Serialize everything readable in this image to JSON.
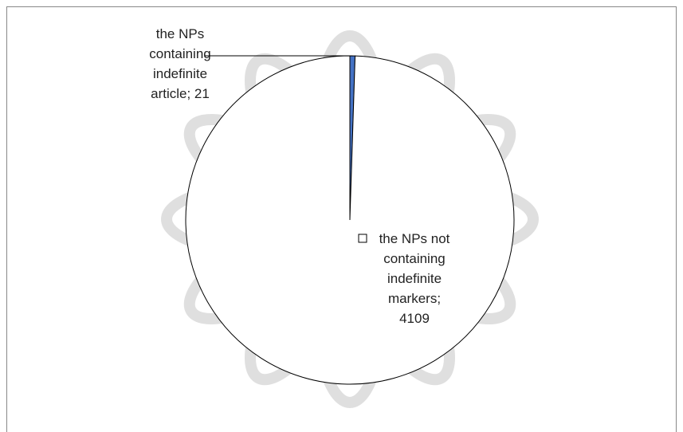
{
  "chart_data": {
    "type": "pie",
    "values": [
      21,
      4109
    ],
    "value_labels": [
      "the NPs containing indefinite article; 21",
      "the NPs not containing indefinite markers; 4109"
    ],
    "colors": [
      "#4472c4",
      "#ffffff"
    ],
    "start_angle": 0,
    "direction": "clockwise"
  }
}
